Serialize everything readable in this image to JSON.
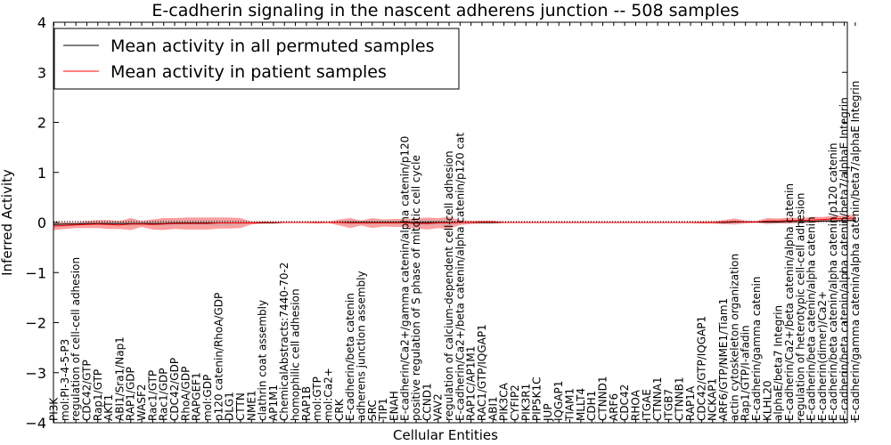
{
  "chart_data": {
    "type": "line",
    "title": "E-cadherin signaling in the nascent adherens junction -- 508 samples",
    "xlabel": "Cellular Entities",
    "ylabel": "Inferred Activity",
    "ylim": [
      -4,
      4
    ],
    "yticks": [
      4,
      3,
      2,
      1,
      0,
      -1,
      -2,
      -3,
      -4
    ],
    "grid": false,
    "legend_position": "top-left",
    "reference_line": 0,
    "categories": [
      "PI3K",
      "mol:PI-3-4-5-P3",
      "regulation of cell-cell adhesion",
      "CDC42/GTP",
      "Rap1/GTP",
      "AKT1",
      "ABI1/Sra1/Nap1",
      "RAP1/GDP",
      "WASF2",
      "Rac1/GTP",
      "Rac1/GDP",
      "CDC42/GDP",
      "RhoA/GDP",
      "RAPGEF1",
      "mol:GDP",
      "p120 catenin/RhoA/GDP",
      "DLG1",
      "CTTN",
      "NME1",
      "clathrin coat assembly",
      "AP1M1",
      "ChemicalAbstracts:7440-70-2",
      "homophilic cell adhesion",
      "RAP1B",
      "mol:GTP",
      "mol:Ca2+",
      "CRK",
      "E-cadherin/beta catenin",
      "adherens junction assembly",
      "SRC",
      "TIP1",
      "ENAH",
      "E-cadherin/Ca2+/gamma catenin/alpha catenin/p120",
      "positive regulation of S phase of mitotic cell cycle",
      "CCND1",
      "VAV2",
      "regulation of calcium-dependent cell-cell adhesion",
      "E-cadherin/Ca2+/beta catenin/alpha catenin/p120 cat",
      "RAP1C/AP1M1",
      "RAC1/GTP/IQGAP1",
      "ABI1",
      "PIK3CA",
      "CYFIP2",
      "PIK3R1",
      "PIP5K1C",
      "JUP",
      "IQGAP1",
      "TIAM1",
      "MLLT4",
      "CDH1",
      "CTNND1",
      "ARF6",
      "CDC42",
      "RHOA",
      "ITGAE",
      "CTNNA1",
      "ITGB7",
      "CTNNB1",
      "RAP1A",
      "CDC42/GTP/IQGAP1",
      "NCKAP1",
      "ARF6/GTP/NME1/Tiam1",
      "actin cytoskeleton organization",
      "Rap1/GTP/I-afadin",
      "E-cadherin/gamma catenin",
      "KLHL20",
      "alphaE/beta7 Integrin",
      "E-cadherin/Ca2+/beta catenin/alpha catenin",
      "regulation of heterotypic cell-cell adhesion",
      "E-cadherin/beta catenin/alpha catenin",
      "E-cadherin(dimer)/Ca2+",
      "E-cadherin/beta catenin/alpha catenin/p120 catenin",
      "E-cadherin/beta catenin/alpha catenin/beta7/alphaE Integrin",
      "E-cadherin/gamma catenin/alpha catenin/beta7/alphaE Integrin"
    ],
    "series": [
      {
        "name": "Mean activity in all permuted samples",
        "color": "#000000",
        "values": [
          -0.04,
          -0.03,
          -0.03,
          -0.02,
          -0.02,
          -0.02,
          -0.02,
          -0.02,
          -0.02,
          -0.02,
          -0.02,
          -0.01,
          -0.01,
          -0.01,
          -0.01,
          -0.01,
          -0.01,
          -0.01,
          -0.01,
          -0.01,
          -0.01,
          0.0,
          0.0,
          0.0,
          0.0,
          0.0,
          0.0,
          0.0,
          0.0,
          0.0,
          0.0,
          0.0,
          0.0,
          0.0,
          0.0,
          0.0,
          0.0,
          0.0,
          0.0,
          0.0,
          0.0,
          0.0,
          0.0,
          0.0,
          0.0,
          0.0,
          0.0,
          0.0,
          0.0,
          0.0,
          0.0,
          0.0,
          0.0,
          0.0,
          0.0,
          0.0,
          0.0,
          0.0,
          0.0,
          0.0,
          0.0,
          0.0,
          0.01,
          0.01,
          0.01,
          0.01,
          0.01,
          0.02,
          0.02,
          0.02,
          0.03,
          0.03,
          0.04,
          0.04
        ]
      },
      {
        "name": "Mean activity in patient samples",
        "color": "#ff0000",
        "values": [
          -0.07,
          -0.06,
          -0.05,
          -0.04,
          -0.03,
          -0.04,
          -0.05,
          -0.03,
          -0.03,
          -0.04,
          -0.03,
          -0.02,
          -0.02,
          -0.02,
          -0.02,
          -0.01,
          -0.01,
          -0.01,
          -0.01,
          0.0,
          0.0,
          0.0,
          0.0,
          0.0,
          0.0,
          0.0,
          0.0,
          -0.01,
          -0.01,
          -0.01,
          -0.01,
          -0.01,
          -0.01,
          -0.02,
          -0.02,
          -0.01,
          -0.01,
          0.0,
          0.0,
          0.01,
          0.01,
          0.0,
          0.0,
          0.0,
          0.0,
          0.0,
          0.0,
          0.0,
          0.0,
          0.0,
          0.0,
          0.0,
          0.0,
          0.0,
          0.0,
          0.0,
          0.0,
          0.0,
          0.0,
          0.0,
          0.0,
          0.01,
          0.02,
          0.01,
          0.01,
          0.03,
          0.03,
          0.04,
          0.04,
          0.05,
          0.06,
          0.07,
          0.08,
          0.09
        ]
      }
    ],
    "bands": [
      {
        "color": "#ff0000",
        "halfwidths": [
          0.08,
          0.07,
          0.06,
          0.07,
          0.08,
          0.09,
          0.08,
          0.12,
          0.06,
          0.1,
          0.12,
          0.11,
          0.12,
          0.12,
          0.12,
          0.11,
          0.11,
          0.1,
          0.03,
          0.02,
          0.01,
          0.01,
          0.01,
          0.01,
          0.02,
          0.01,
          0.06,
          0.1,
          0.05,
          0.1,
          0.07,
          0.08,
          0.08,
          0.1,
          0.12,
          0.1,
          0.12,
          0.05,
          0.03,
          0.03,
          0.03,
          0.01,
          0.01,
          0.01,
          0.01,
          0.01,
          0.01,
          0.01,
          0.01,
          0.01,
          0.01,
          0.01,
          0.01,
          0.01,
          0.01,
          0.01,
          0.01,
          0.01,
          0.01,
          0.02,
          0.02,
          0.04,
          0.06,
          0.03,
          0.02,
          0.06,
          0.05,
          0.06,
          0.05,
          0.06,
          0.05,
          0.06,
          0.06,
          0.07
        ]
      },
      {
        "color": "#aaaaaa",
        "halfwidths": [
          0.03,
          0.03,
          0.03,
          0.03,
          0.03,
          0.03,
          0.03,
          0.05,
          0.03,
          0.04,
          0.05,
          0.05,
          0.05,
          0.05,
          0.05,
          0.05,
          0.05,
          0.04,
          0.01,
          0.01,
          0.01,
          0.01,
          0.01,
          0.01,
          0.01,
          0.01,
          0.02,
          0.05,
          0.03,
          0.05,
          0.04,
          0.04,
          0.04,
          0.05,
          0.06,
          0.05,
          0.06,
          0.03,
          0.02,
          0.02,
          0.02,
          0.01,
          0.01,
          0.01,
          0.01,
          0.01,
          0.01,
          0.01,
          0.01,
          0.01,
          0.01,
          0.01,
          0.01,
          0.01,
          0.01,
          0.01,
          0.01,
          0.01,
          0.01,
          0.01,
          0.01,
          0.02,
          0.02,
          0.02,
          0.01,
          0.02,
          0.02,
          0.02,
          0.02,
          0.02,
          0.02,
          0.02,
          0.02,
          0.03
        ]
      }
    ]
  }
}
